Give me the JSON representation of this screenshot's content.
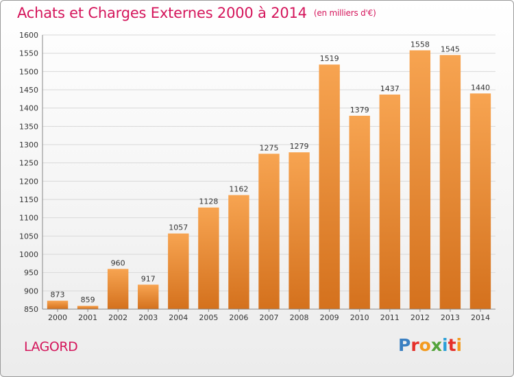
{
  "header": {
    "title": "Achats et Charges Externes 2000 à 2014",
    "unit": "(en milliers d'€)"
  },
  "footer": {
    "place": "LAGORD",
    "brand": "Proxiti"
  },
  "colors": {
    "title": "#d4145a",
    "bar_light": "#f7a451",
    "bar_dark": "#d4711d",
    "grid": "#d8d8d8"
  },
  "chart_data": {
    "type": "bar",
    "title": "Achats et Charges Externes 2000 à 2014",
    "subtitle": "(en milliers d'€)",
    "xlabel": "",
    "ylabel": "",
    "categories": [
      "2000",
      "2001",
      "2002",
      "2003",
      "2004",
      "2005",
      "2006",
      "2007",
      "2008",
      "2009",
      "2010",
      "2011",
      "2012",
      "2013",
      "2014"
    ],
    "values": [
      873,
      859,
      960,
      917,
      1057,
      1128,
      1162,
      1275,
      1279,
      1519,
      1379,
      1437,
      1558,
      1545,
      1440
    ],
    "ylim": [
      850,
      1600
    ],
    "yticks": [
      850,
      900,
      950,
      1000,
      1050,
      1100,
      1150,
      1200,
      1250,
      1300,
      1350,
      1400,
      1450,
      1500,
      1550,
      1600
    ],
    "grid": true,
    "legend": "none"
  }
}
